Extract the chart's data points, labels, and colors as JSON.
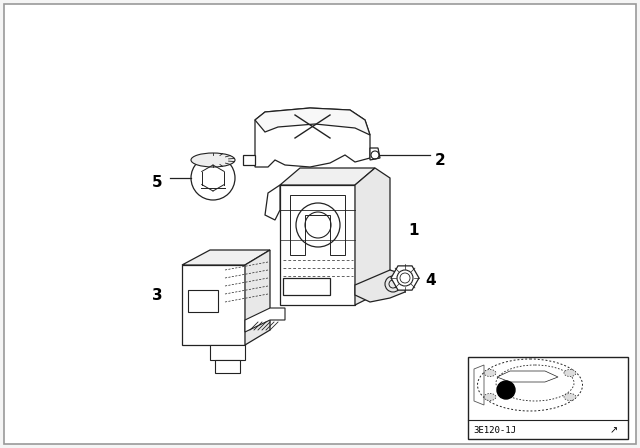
{
  "background_color": "#f5f5f5",
  "diagram_bg": "#ffffff",
  "border_color": "#999999",
  "line_color": "#222222",
  "fig_width": 6.4,
  "fig_height": 4.48,
  "dpi": 100,
  "diagram_code": "3E120-1J"
}
